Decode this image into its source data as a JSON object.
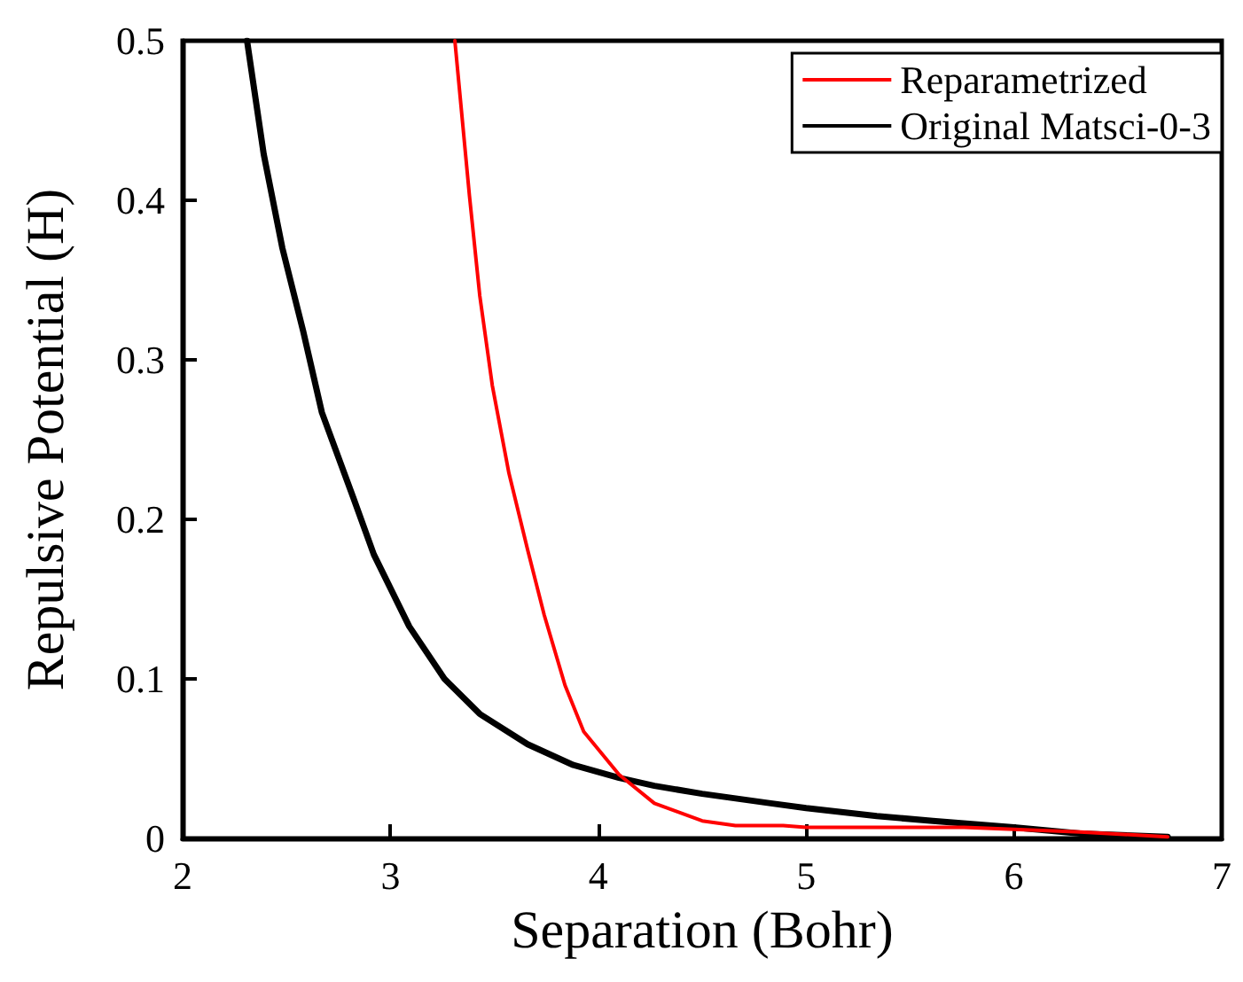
{
  "chart_data": {
    "type": "line",
    "xlabel": "Separation (Bohr)",
    "ylabel": "Repulsive Potential (H)",
    "xlim": [
      2,
      7
    ],
    "xticks": [
      2,
      3,
      4,
      5,
      6,
      7
    ],
    "ylim": [
      0,
      0.5
    ],
    "yticks": [
      0,
      0.1,
      0.2,
      0.3,
      0.4,
      0.5
    ],
    "grid": false,
    "legend": "top right",
    "marker": "none",
    "line_style": "solid",
    "series": [
      {
        "name": "Reparametrized",
        "color": "#ff0000",
        "x": [
          3.31,
          3.38,
          3.43,
          3.49,
          3.57,
          3.66,
          3.74,
          3.84,
          3.93,
          4.1,
          4.27,
          4.5,
          4.66,
          4.89,
          5.0,
          5.76,
          6.32,
          6.74
        ],
        "values": [
          0.5,
          0.403,
          0.34,
          0.284,
          0.229,
          0.181,
          0.14,
          0.096,
          0.067,
          0.04,
          0.022,
          0.011,
          0.008,
          0.008,
          0.007,
          0.007,
          0.004,
          0.001
        ]
      },
      {
        "name": "Original Matsci-0-3",
        "color": "#000000",
        "x": [
          2.31,
          2.39,
          2.48,
          2.58,
          2.67,
          2.82,
          2.92,
          3.09,
          3.26,
          3.43,
          3.66,
          3.88,
          4.1,
          4.27,
          4.5,
          4.83,
          5.0,
          5.34,
          5.61,
          6.0,
          6.32,
          6.74
        ],
        "values": [
          0.5,
          0.429,
          0.37,
          0.318,
          0.267,
          0.214,
          0.178,
          0.133,
          0.1,
          0.078,
          0.059,
          0.046,
          0.038,
          0.033,
          0.028,
          0.022,
          0.019,
          0.014,
          0.011,
          0.007,
          0.003,
          0.001
        ]
      }
    ]
  }
}
